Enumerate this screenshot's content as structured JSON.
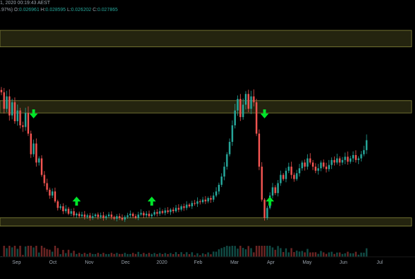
{
  "header": {
    "timestamp": "1, 2020 00:19:43 AEST",
    "change": ".97%)",
    "open_label": "O:",
    "open_value": "0.026961",
    "high_label": "H:",
    "high_value": "0.028595",
    "low_label": "L:",
    "low_value": "0.026202",
    "close_label": "C:",
    "close_value": "0.027865"
  },
  "colors": {
    "background": "#000000",
    "up": "#26a69a",
    "down": "#ef5350",
    "zone_fill": "#2a2a12",
    "zone_stroke": "#8a8a3c",
    "arrow": "#00e52a",
    "axis_text": "#9aa3ad"
  },
  "chart_data": {
    "type": "candlestick",
    "x_axis": {
      "tick_labels": [
        "Sep",
        "Oct",
        "Nov",
        "Dec",
        "2020",
        "Feb",
        "Mar",
        "Apr",
        "May",
        "Jun",
        "Jul"
      ],
      "tick_month_index": [
        0,
        1,
        2,
        3,
        4,
        5,
        6,
        7,
        8,
        9,
        10
      ]
    },
    "candle_closes": [
      0.029,
      0.027,
      0.0285,
      0.0262,
      0.0278,
      0.0255,
      0.0268,
      0.025,
      0.0248,
      0.0265,
      0.024,
      0.0215,
      0.0228,
      0.0205,
      0.021,
      0.019,
      0.018,
      0.0172,
      0.0165,
      0.017,
      0.0158,
      0.015,
      0.0152,
      0.0146,
      0.0149,
      0.0143,
      0.0146,
      0.0141,
      0.0143,
      0.014,
      0.0142,
      0.0139,
      0.0141,
      0.0138,
      0.014,
      0.0142,
      0.0139,
      0.0141,
      0.0138,
      0.014,
      0.0142,
      0.0139,
      0.0137,
      0.014,
      0.0138,
      0.0136,
      0.0139,
      0.0141,
      0.0143,
      0.014,
      0.0138,
      0.0142,
      0.0144,
      0.0141,
      0.0143,
      0.014,
      0.0142,
      0.0145,
      0.0143,
      0.0146,
      0.0144,
      0.0147,
      0.0145,
      0.0148,
      0.0146,
      0.015,
      0.0148,
      0.0152,
      0.015,
      0.0154,
      0.0152,
      0.0156,
      0.0155,
      0.0158,
      0.0157,
      0.016,
      0.0158,
      0.0162,
      0.016,
      0.0165,
      0.017,
      0.0178,
      0.0188,
      0.02,
      0.0215,
      0.023,
      0.025,
      0.0268,
      0.0282,
      0.026,
      0.0275,
      0.0288,
      0.027,
      0.0285,
      0.0278,
      0.024,
      0.02,
      0.016,
      0.0138,
      0.015,
      0.0165,
      0.0175,
      0.0168,
      0.018,
      0.019,
      0.0185,
      0.0195,
      0.02,
      0.019,
      0.0185,
      0.0192,
      0.0198,
      0.0205,
      0.02,
      0.021,
      0.0205,
      0.02,
      0.0195,
      0.0198,
      0.0205,
      0.02,
      0.0197,
      0.0202,
      0.0208,
      0.0205,
      0.021,
      0.0205,
      0.0208,
      0.0212,
      0.0206,
      0.021,
      0.0214,
      0.0208,
      0.021,
      0.0215,
      0.022,
      0.0232
    ],
    "zones": [
      {
        "low": 0.0345,
        "high": 0.0365
      },
      {
        "low": 0.0265,
        "high": 0.028
      },
      {
        "low": 0.0128,
        "high": 0.0138
      }
    ],
    "arrows": [
      {
        "direction": "down",
        "candle_index": 12
      },
      {
        "direction": "down",
        "candle_index": 98
      },
      {
        "direction": "up",
        "candle_index": 28
      },
      {
        "direction": "up",
        "candle_index": 56
      },
      {
        "direction": "up",
        "candle_index": 100
      }
    ],
    "y_range": [
      0.01,
      0.0385
    ]
  }
}
